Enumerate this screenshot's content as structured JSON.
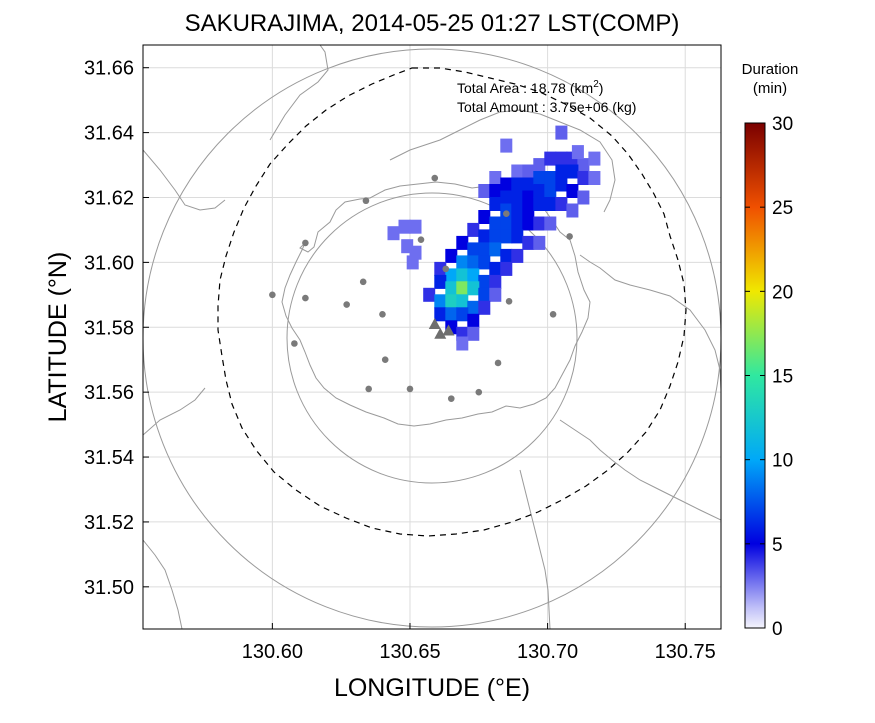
{
  "chart_data": {
    "type": "heatmap",
    "title": "SAKURAJIMA, 2014-05-25 01:27 LST(COMP)",
    "xlabel": "LONGITUDE (°E)",
    "ylabel": "LATITUDE (°N)",
    "xlim": [
      130.553,
      130.763
    ],
    "ylim": [
      31.487,
      31.667
    ],
    "xticks": [
      "130.60",
      "130.65",
      "130.70",
      "130.75"
    ],
    "yticks": [
      "31.50",
      "31.52",
      "31.54",
      "31.56",
      "31.58",
      "31.60",
      "31.62",
      "31.64",
      "31.66"
    ],
    "grid": true,
    "annotations": {
      "area_label": "Total Area   : 18.78 (km",
      "area_sup": "2",
      "area_close": ")",
      "amount_label": "Total Amount : 3.75e+06 (kg)"
    },
    "colorbar": {
      "title_line1": "Duration",
      "title_line2": "(min)",
      "ticks": [
        "0",
        "5",
        "10",
        "15",
        "20",
        "25",
        "30"
      ],
      "range": [
        0,
        30
      ],
      "colors": [
        "#e8e8fc",
        "#0000e0",
        "#00a0f8",
        "#30e8a0",
        "#f0e800",
        "#f05000",
        "#7a0000"
      ]
    },
    "range_rings_km": [
      8,
      15
    ],
    "center": {
      "lon": 130.659,
      "lat": 31.581
    },
    "vents": [
      {
        "lon": 130.659,
        "lat": 31.581
      },
      {
        "lon": 130.661,
        "lat": 31.578
      },
      {
        "lon": 130.664,
        "lat": 31.579
      }
    ],
    "stations": [
      {
        "lon": 130.659,
        "lat": 31.626
      },
      {
        "lon": 130.634,
        "lat": 31.619
      },
      {
        "lon": 130.612,
        "lat": 31.606
      },
      {
        "lon": 130.654,
        "lat": 31.607
      },
      {
        "lon": 130.6,
        "lat": 31.59
      },
      {
        "lon": 130.612,
        "lat": 31.589
      },
      {
        "lon": 130.627,
        "lat": 31.587
      },
      {
        "lon": 130.633,
        "lat": 31.594
      },
      {
        "lon": 130.64,
        "lat": 31.584
      },
      {
        "lon": 130.663,
        "lat": 31.598
      },
      {
        "lon": 130.685,
        "lat": 31.615
      },
      {
        "lon": 130.686,
        "lat": 31.588
      },
      {
        "lon": 130.708,
        "lat": 31.608
      },
      {
        "lon": 130.702,
        "lat": 31.584
      },
      {
        "lon": 130.608,
        "lat": 31.575
      },
      {
        "lon": 130.641,
        "lat": 31.57
      },
      {
        "lon": 130.682,
        "lat": 31.569
      },
      {
        "lon": 130.635,
        "lat": 31.561
      },
      {
        "lon": 130.65,
        "lat": 31.561
      },
      {
        "lon": 130.665,
        "lat": 31.558
      },
      {
        "lon": 130.675,
        "lat": 31.56
      }
    ],
    "ash_cells_comment": "duration (min) per grid cell, [lon, lat, minutes]",
    "ash_cells": [
      [
        130.689,
        31.628,
        2
      ],
      [
        130.693,
        31.628,
        3
      ],
      [
        130.697,
        31.63,
        3
      ],
      [
        130.701,
        31.632,
        4
      ],
      [
        130.705,
        31.632,
        4
      ],
      [
        130.709,
        31.632,
        4
      ],
      [
        130.713,
        31.63,
        3
      ],
      [
        130.681,
        31.626,
        2
      ],
      [
        130.685,
        31.624,
        5
      ],
      [
        130.689,
        31.624,
        6
      ],
      [
        130.693,
        31.624,
        6
      ],
      [
        130.697,
        31.626,
        7
      ],
      [
        130.701,
        31.626,
        7
      ],
      [
        130.705,
        31.628,
        6
      ],
      [
        130.709,
        31.628,
        6
      ],
      [
        130.713,
        31.626,
        4
      ],
      [
        130.717,
        31.626,
        2
      ],
      [
        130.677,
        31.622,
        3
      ],
      [
        130.681,
        31.622,
        5
      ],
      [
        130.685,
        31.62,
        6
      ],
      [
        130.689,
        31.62,
        6
      ],
      [
        130.693,
        31.62,
        5
      ],
      [
        130.697,
        31.622,
        6
      ],
      [
        130.701,
        31.622,
        7
      ],
      [
        130.705,
        31.624,
        6
      ],
      [
        130.709,
        31.622,
        5
      ],
      [
        130.713,
        31.62,
        3
      ],
      [
        130.681,
        31.618,
        6
      ],
      [
        130.685,
        31.616,
        7
      ],
      [
        130.689,
        31.616,
        6
      ],
      [
        130.693,
        31.616,
        5
      ],
      [
        130.697,
        31.618,
        6
      ],
      [
        130.701,
        31.618,
        6
      ],
      [
        130.705,
        31.618,
        4
      ],
      [
        130.709,
        31.616,
        3
      ],
      [
        130.677,
        31.614,
        5
      ],
      [
        130.681,
        31.612,
        7
      ],
      [
        130.685,
        31.612,
        7
      ],
      [
        130.689,
        31.612,
        6
      ],
      [
        130.693,
        31.612,
        5
      ],
      [
        130.697,
        31.612,
        4
      ],
      [
        130.701,
        31.612,
        3
      ],
      [
        130.673,
        31.61,
        4
      ],
      [
        130.677,
        31.608,
        6
      ],
      [
        130.681,
        31.608,
        7
      ],
      [
        130.685,
        31.608,
        7
      ],
      [
        130.689,
        31.608,
        6
      ],
      [
        130.693,
        31.606,
        4
      ],
      [
        130.697,
        31.606,
        3
      ],
      [
        130.669,
        31.606,
        5
      ],
      [
        130.673,
        31.604,
        7
      ],
      [
        130.677,
        31.604,
        7
      ],
      [
        130.681,
        31.604,
        8
      ],
      [
        130.685,
        31.602,
        6
      ],
      [
        130.689,
        31.602,
        4
      ],
      [
        130.665,
        31.602,
        5
      ],
      [
        130.669,
        31.6,
        9
      ],
      [
        130.673,
        31.6,
        8
      ],
      [
        130.677,
        31.6,
        7
      ],
      [
        130.681,
        31.598,
        6
      ],
      [
        130.685,
        31.598,
        4
      ],
      [
        130.661,
        31.598,
        4
      ],
      [
        130.665,
        31.596,
        10
      ],
      [
        130.669,
        31.596,
        12
      ],
      [
        130.673,
        31.596,
        10
      ],
      [
        130.677,
        31.594,
        7
      ],
      [
        130.681,
        31.594,
        4
      ],
      [
        130.661,
        31.594,
        6
      ],
      [
        130.665,
        31.592,
        12
      ],
      [
        130.669,
        31.592,
        17
      ],
      [
        130.673,
        31.592,
        12
      ],
      [
        130.677,
        31.59,
        7
      ],
      [
        130.681,
        31.59,
        3
      ],
      [
        130.657,
        31.59,
        4
      ],
      [
        130.661,
        31.588,
        9
      ],
      [
        130.665,
        31.588,
        13
      ],
      [
        130.669,
        31.588,
        12
      ],
      [
        130.673,
        31.586,
        8
      ],
      [
        130.677,
        31.586,
        4
      ],
      [
        130.661,
        31.584,
        6
      ],
      [
        130.665,
        31.584,
        8
      ],
      [
        130.669,
        31.584,
        7
      ],
      [
        130.673,
        31.582,
        5
      ],
      [
        130.665,
        31.58,
        5
      ],
      [
        130.669,
        31.578,
        4
      ],
      [
        130.673,
        31.578,
        3
      ],
      [
        130.669,
        31.575,
        2
      ],
      [
        130.648,
        31.611,
        2
      ],
      [
        130.652,
        31.611,
        2
      ],
      [
        130.644,
        31.609,
        2
      ],
      [
        130.649,
        31.605,
        1
      ],
      [
        130.652,
        31.603,
        2
      ],
      [
        130.651,
        31.6,
        1
      ],
      [
        130.705,
        31.64,
        3
      ],
      [
        130.711,
        31.634,
        2
      ],
      [
        130.685,
        31.636,
        2
      ],
      [
        130.717,
        31.632,
        1
      ]
    ]
  }
}
